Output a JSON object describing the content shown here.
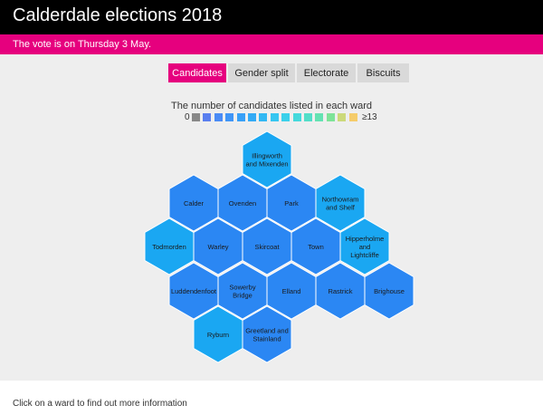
{
  "header": {
    "title": "Calderdale elections 2018"
  },
  "banner": {
    "text": "The vote is on Thursday 3 May."
  },
  "tabs": [
    {
      "label": "Candidates",
      "active": true
    },
    {
      "label": "Gender split",
      "active": false
    },
    {
      "label": "Electorate",
      "active": false
    },
    {
      "label": "Biscuits",
      "active": false
    }
  ],
  "legend": {
    "title": "The number of candidates listed in each ward",
    "min_label": "0",
    "max_label": "≥13",
    "colors": [
      "#888888",
      "#5a7fef",
      "#4a8bf5",
      "#3f95f7",
      "#38a0f7",
      "#33aaf5",
      "#33b8f3",
      "#36c6f1",
      "#3bd0ea",
      "#45d9dc",
      "#52dec8",
      "#64e2b2",
      "#7ee398",
      "#ccd97a",
      "#f5cc6a"
    ]
  },
  "wards": [
    {
      "name": "Illingworth and Mixenden",
      "color": "#1aa7f2"
    },
    {
      "name": "Calder",
      "color": "#2b87f3"
    },
    {
      "name": "Ovenden",
      "color": "#2b87f3"
    },
    {
      "name": "Park",
      "color": "#2b87f3"
    },
    {
      "name": "Northowram and Shelf",
      "color": "#1aa7f2"
    },
    {
      "name": "Todmorden",
      "color": "#1aa7f2"
    },
    {
      "name": "Warley",
      "color": "#2b87f3"
    },
    {
      "name": "Skircoat",
      "color": "#2b87f3"
    },
    {
      "name": "Town",
      "color": "#2b87f3"
    },
    {
      "name": "Hipperholme and Lightcliffe",
      "color": "#1aa7f2"
    },
    {
      "name": "Luddendenfoot",
      "color": "#2b87f3"
    },
    {
      "name": "Sowerby Bridge",
      "color": "#2b87f3"
    },
    {
      "name": "Elland",
      "color": "#2b87f3"
    },
    {
      "name": "Rastrick",
      "color": "#2b87f3"
    },
    {
      "name": "Brighouse",
      "color": "#2b87f3"
    },
    {
      "name": "Ryburn",
      "color": "#1aa7f2"
    },
    {
      "name": "Greetland and Stainland",
      "color": "#2b87f3"
    }
  ],
  "footer": {
    "text": "Click on a ward to find out more information"
  }
}
